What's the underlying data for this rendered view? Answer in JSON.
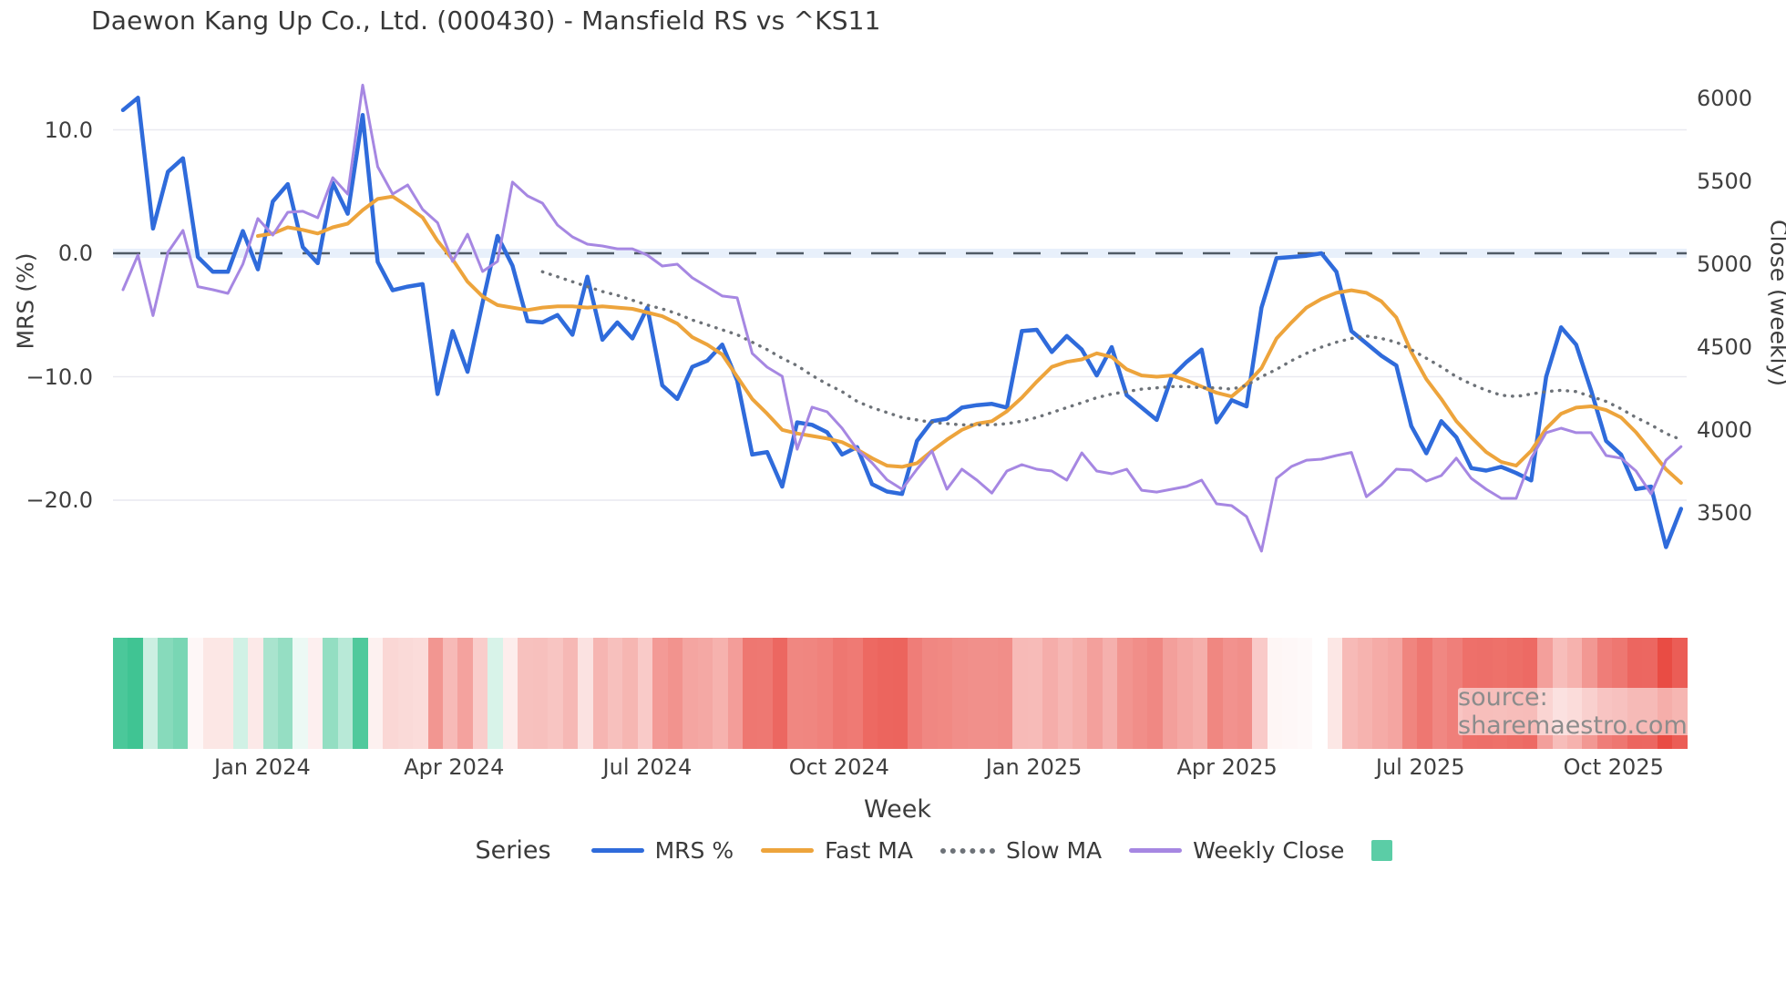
{
  "title": "Daewon Kang Up Co., Ltd. (000430) - Mansfield RS vs ^KS11",
  "source": "source: sharemaestro.com",
  "axes": {
    "x": {
      "label": "Week",
      "ticks": [
        {
          "label": "Jan 2024",
          "week": 9.3
        },
        {
          "label": "Apr 2024",
          "week": 22.1
        },
        {
          "label": "Jul 2024",
          "week": 35.0
        },
        {
          "label": "Oct 2024",
          "week": 47.8
        },
        {
          "label": "Jan 2025",
          "week": 60.8
        },
        {
          "label": "Apr 2025",
          "week": 73.7
        },
        {
          "label": "Jul 2025",
          "week": 86.6
        },
        {
          "label": "Oct 2025",
          "week": 99.5
        }
      ]
    },
    "left": {
      "label": "MRS (%)",
      "ticks": [
        {
          "label": "10.0",
          "value": 10
        },
        {
          "label": "0.0",
          "value": 0
        },
        {
          "label": "−10.0",
          "value": -10
        },
        {
          "label": "−20.0",
          "value": -20
        }
      ],
      "zero_line_value": 0
    },
    "right": {
      "label": "Close (weekly)",
      "ticks": [
        {
          "label": "6000",
          "value": 6000
        },
        {
          "label": "5500",
          "value": 5500
        },
        {
          "label": "5000",
          "value": 5000
        },
        {
          "label": "4500",
          "value": 4500
        },
        {
          "label": "4000",
          "value": 4000
        },
        {
          "label": "3500",
          "value": 3500
        }
      ]
    }
  },
  "legend": {
    "title": "Series",
    "items": [
      {
        "label": "MRS %",
        "swatch": "line",
        "color": "#2f6bdb"
      },
      {
        "label": "Fast MA",
        "swatch": "line",
        "color": "#eda43c"
      },
      {
        "label": "Slow MA",
        "swatch": "dotted",
        "color": "#6d7278"
      },
      {
        "label": "Weekly Close",
        "swatch": "line",
        "color": "#a687e2"
      },
      {
        "label": "",
        "swatch": "square",
        "color": "#5bcda6"
      }
    ]
  },
  "chart_data": {
    "type": "line",
    "x_unit": "week",
    "n_weeks": 105,
    "x_tick_labels": [
      "Jan 2024",
      "Apr 2024",
      "Jul 2024",
      "Oct 2024",
      "Jan 2025",
      "Apr 2025",
      "Jul 2025",
      "Oct 2025"
    ],
    "left_axis": {
      "label": "MRS (%)",
      "range": [
        -25,
        15
      ],
      "gridlines": [
        10,
        -10,
        -20
      ],
      "zero_dashed_line": true
    },
    "right_axis": {
      "label": "Close (weekly)",
      "range": [
        3250,
        6100
      ]
    },
    "series": [
      {
        "name": "MRS %",
        "axis": "left",
        "color": "#2f6bdb",
        "style": "solid",
        "width": 4.5,
        "values": [
          11.6,
          12.6,
          2.0,
          6.6,
          7.7,
          -0.3,
          -1.5,
          -1.5,
          1.8,
          -1.3,
          4.2,
          5.6,
          0.5,
          -0.8,
          5.7,
          3.2,
          11.2,
          -0.7,
          -3.0,
          -2.7,
          -2.5,
          -11.4,
          -6.3,
          -9.6,
          -4.0,
          1.4,
          -1.0,
          -5.5,
          -5.6,
          -5.0,
          -6.6,
          -1.9,
          -7.0,
          -5.6,
          -6.9,
          -4.4,
          -10.7,
          -11.8,
          -9.2,
          -8.7,
          -7.4,
          -10.3,
          -16.3,
          -16.1,
          -18.9,
          -13.7,
          -13.9,
          -14.5,
          -16.3,
          -15.7,
          -18.7,
          -19.3,
          -19.5,
          -15.2,
          -13.6,
          -13.4,
          -12.5,
          -12.3,
          -12.2,
          -12.5,
          -6.3,
          -6.2,
          -8.0,
          -6.7,
          -7.8,
          -9.9,
          -7.6,
          -11.5,
          -12.5,
          -13.5,
          -10.0,
          -8.8,
          -7.8,
          -13.7,
          -11.9,
          -12.4,
          -4.4,
          -0.4,
          -0.3,
          -0.2,
          0.0,
          -1.5,
          -6.3,
          -7.3,
          -8.3,
          -9.1,
          -14.0,
          -16.2,
          -13.6,
          -14.9,
          -17.4,
          -17.6,
          -17.3,
          -17.8,
          -18.4,
          -10.0,
          -6.0,
          -7.4,
          -11.1,
          -15.2,
          -16.3,
          -19.1,
          -18.9,
          -23.8,
          -20.7
        ]
      },
      {
        "name": "Fast MA",
        "axis": "left",
        "color": "#eda43c",
        "style": "solid",
        "width": 4,
        "values": [
          null,
          null,
          null,
          null,
          null,
          null,
          null,
          null,
          null,
          1.4,
          1.6,
          2.1,
          1.9,
          1.6,
          2.1,
          2.4,
          3.5,
          4.4,
          4.6,
          3.8,
          2.9,
          1.0,
          -0.5,
          -2.3,
          -3.5,
          -4.2,
          -4.4,
          -4.6,
          -4.4,
          -4.3,
          -4.3,
          -4.4,
          -4.3,
          -4.4,
          -4.5,
          -4.8,
          -5.1,
          -5.7,
          -6.8,
          -7.4,
          -8.2,
          -10.0,
          -11.8,
          -13.0,
          -14.3,
          -14.6,
          -14.8,
          -15.0,
          -15.3,
          -15.9,
          -16.6,
          -17.2,
          -17.3,
          -17.0,
          -16.0,
          -15.1,
          -14.3,
          -13.8,
          -13.6,
          -12.8,
          -11.7,
          -10.4,
          -9.2,
          -8.8,
          -8.6,
          -8.1,
          -8.4,
          -9.4,
          -9.9,
          -10.0,
          -9.9,
          -10.3,
          -10.8,
          -11.3,
          -11.6,
          -10.6,
          -9.3,
          -6.9,
          -5.6,
          -4.4,
          -3.7,
          -3.2,
          -3.0,
          -3.2,
          -3.9,
          -5.2,
          -8.0,
          -10.2,
          -11.8,
          -13.6,
          -14.9,
          -16.1,
          -16.9,
          -17.2,
          -16.0,
          -14.2,
          -13.0,
          -12.5,
          -12.4,
          -12.7,
          -13.3,
          -14.5,
          -16.0,
          -17.5,
          -18.6
        ]
      },
      {
        "name": "Slow MA",
        "axis": "left",
        "color": "#6d7278",
        "style": "dotted",
        "width": 3.4,
        "values": [
          null,
          null,
          null,
          null,
          null,
          null,
          null,
          null,
          null,
          null,
          null,
          null,
          null,
          null,
          null,
          null,
          null,
          null,
          null,
          null,
          null,
          null,
          null,
          null,
          null,
          null,
          null,
          null,
          -1.5,
          -1.9,
          -2.3,
          -2.7,
          -3.1,
          -3.4,
          -3.8,
          -4.2,
          -4.5,
          -4.9,
          -5.4,
          -5.8,
          -6.2,
          -6.6,
          -7.2,
          -7.8,
          -8.5,
          -9.1,
          -9.9,
          -10.6,
          -11.2,
          -12.0,
          -12.5,
          -12.9,
          -13.3,
          -13.5,
          -13.7,
          -13.8,
          -13.9,
          -13.9,
          -13.9,
          -13.8,
          -13.6,
          -13.3,
          -12.9,
          -12.5,
          -12.1,
          -11.7,
          -11.4,
          -11.2,
          -11.0,
          -10.9,
          -10.8,
          -10.8,
          -10.9,
          -10.9,
          -11.0,
          -10.7,
          -10.0,
          -9.4,
          -8.7,
          -8.1,
          -7.6,
          -7.2,
          -6.9,
          -6.7,
          -6.9,
          -7.2,
          -7.8,
          -8.5,
          -9.2,
          -10.0,
          -10.6,
          -11.1,
          -11.5,
          -11.6,
          -11.4,
          -11.2,
          -11.1,
          -11.2,
          -11.6,
          -12.0,
          -12.6,
          -13.3,
          -13.9,
          -14.6,
          -15.1
        ]
      },
      {
        "name": "Weekly Close",
        "axis": "right",
        "color": "#a687e2",
        "style": "solid",
        "width": 3,
        "values": [
          4846,
          5055,
          4690,
          5072,
          5204,
          4865,
          4846,
          4824,
          5000,
          5275,
          5176,
          5313,
          5319,
          5280,
          5522,
          5423,
          6080,
          5588,
          5423,
          5478,
          5330,
          5250,
          5017,
          5181,
          4956,
          5017,
          5495,
          5412,
          5368,
          5236,
          5165,
          5121,
          5110,
          5093,
          5093,
          5055,
          4989,
          5000,
          4918,
          4863,
          4808,
          4797,
          4462,
          4379,
          4324,
          3884,
          4138,
          4110,
          4011,
          3884,
          3802,
          3700,
          3643,
          3764,
          3873,
          3643,
          3764,
          3698,
          3620,
          3753,
          3791,
          3764,
          3753,
          3698,
          3862,
          3753,
          3736,
          3764,
          3637,
          3626,
          3643,
          3660,
          3698,
          3555,
          3544,
          3478,
          3270,
          3709,
          3780,
          3818,
          3824,
          3846,
          3865,
          3598,
          3670,
          3764,
          3758,
          3692,
          3725,
          3830,
          3709,
          3643,
          3588,
          3588,
          3830,
          3984,
          4011,
          3984,
          3984,
          3846,
          3830,
          3753,
          3615,
          3818,
          3900
        ]
      }
    ],
    "heat_strip": {
      "derived_from": "MRS %",
      "positive_color": "#3cc391",
      "negative_color": "#e94b43",
      "positive_full_scale": 13,
      "negative_full_scale": 24
    }
  }
}
